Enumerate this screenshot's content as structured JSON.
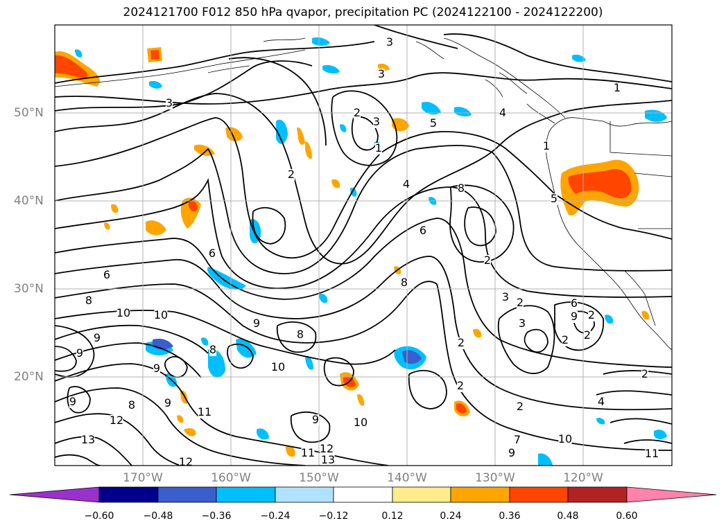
{
  "title": "2024121700 F012 850 hPa qvapor, precipitation PC (2024122100 - 2024122200)",
  "map": {
    "lat_ticks": [
      "50°N",
      "40°N",
      "30°N",
      "20°N"
    ],
    "lon_ticks": [
      "170°W",
      "160°W",
      "150°W",
      "140°W",
      "130°W",
      "120°W"
    ],
    "gridlines": true,
    "contour_labels": [
      "3",
      "3",
      "3",
      "1",
      "2",
      "3",
      "2",
      "1",
      "4",
      "5",
      "4",
      "8",
      "8",
      "1",
      "2",
      "6",
      "5",
      "6",
      "8",
      "6",
      "10",
      "10",
      "9",
      "9",
      "8",
      "8",
      "9",
      "9",
      "9",
      "10",
      "9",
      "9",
      "8",
      "12",
      "13",
      "11",
      "12",
      "9",
      "10",
      "11",
      "12",
      "13",
      "7",
      "10",
      "9",
      "2",
      "3",
      "3",
      "2",
      "6",
      "2",
      "2",
      "2",
      "2",
      "4",
      "2",
      "11",
      "2"
    ]
  },
  "colorbar": {
    "colors": [
      "#9932cc",
      "#00008b",
      "#3a5fcd",
      "#00bfff",
      "#b0e2ff",
      "#ffffff",
      "#ffec8b",
      "#ffa500",
      "#ff4500",
      "#b22222",
      "#ff82ab"
    ],
    "tick_labels": [
      "−0.60",
      "−0.48",
      "−0.36",
      "−0.24",
      "−0.12",
      "0.12",
      "0.24",
      "0.36",
      "0.48",
      "0.60"
    ]
  }
}
